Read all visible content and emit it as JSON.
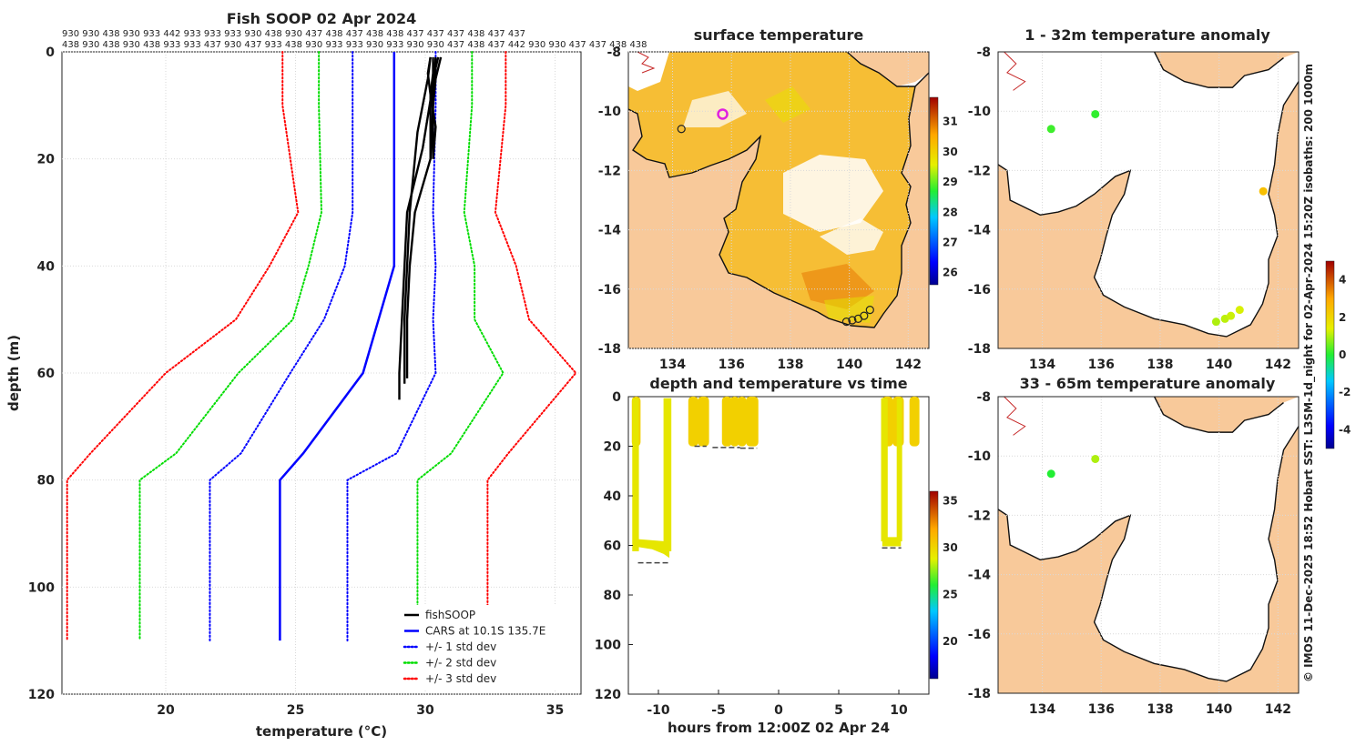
{
  "credit": "© IMOS 11-Dec-2025 18:52 Hobart SST: L3SM-1d_night for 02-Apr-2024 15:20Z isobaths: 200  1000m",
  "chart_data": [
    {
      "type": "line",
      "title": "Fish SOOP 02 Apr 2024",
      "xlabel": "temperature (°C)",
      "ylabel": "depth (m)",
      "xlim": [
        16,
        36
      ],
      "ylim": [
        0,
        120
      ],
      "xticks": [
        20,
        25,
        30,
        35
      ],
      "yticks": [
        0,
        20,
        40,
        60,
        80,
        100,
        120
      ],
      "top_labels_row1": "930 930 438 930 933 442 933 933 933 930 438 930 437 438 437 438 438 437 437 437 438 437 437",
      "top_labels_row2": "438 930 438 930 438 933 933 437 930 437 933 438 930 933 933 930 933 930 930 437 438 437 442 930 930 437 437 438 438",
      "legend": [
        "fishSOOP",
        "CARS at 10.1S 135.7E",
        "+/- 1 std dev",
        "+/- 2 std dev",
        "+/- 3 std dev"
      ],
      "depths": [
        0,
        10,
        30,
        40,
        50,
        60,
        75,
        80,
        110
      ],
      "series": [
        {
          "name": "CARS at 10.1S 135.7E",
          "color": "#0000ff",
          "style": "solid",
          "values": [
            28.8,
            28.8,
            28.8,
            28.8,
            28.2,
            27.6,
            25.3,
            24.4,
            24.4
          ]
        },
        {
          "name": "+1 std dev",
          "color": "#0000ff",
          "style": "dotted",
          "values": [
            30.4,
            30.4,
            30.3,
            30.4,
            30.3,
            30.4,
            28.9,
            27.0,
            27.0
          ]
        },
        {
          "name": "-1 std dev",
          "color": "#0000ff",
          "style": "dotted",
          "values": [
            27.2,
            27.2,
            27.2,
            26.9,
            26.1,
            24.8,
            22.9,
            21.7,
            21.7
          ]
        },
        {
          "name": "+2 std dev",
          "color": "#00dd00",
          "style": "dotted",
          "values": [
            31.8,
            31.8,
            31.5,
            31.9,
            31.9,
            33.0,
            31.0,
            29.7,
            29.7
          ]
        },
        {
          "name": "-2 std dev",
          "color": "#00dd00",
          "style": "dotted",
          "values": [
            25.9,
            25.9,
            26.0,
            25.5,
            24.9,
            22.8,
            20.4,
            19.0,
            19.0
          ]
        },
        {
          "name": "+3 std dev",
          "color": "#ff0000",
          "style": "dotted",
          "values": [
            33.1,
            33.1,
            32.7,
            33.5,
            34.0,
            35.8,
            33.2,
            32.4,
            32.4
          ]
        },
        {
          "name": "-3 std dev",
          "color": "#ff0000",
          "style": "dotted",
          "values": [
            24.5,
            24.5,
            25.1,
            24.0,
            22.7,
            20.0,
            17.1,
            16.2,
            16.2
          ]
        }
      ],
      "fishsoop_profiles": [
        {
          "d": [
            1,
            5,
            10,
            15,
            20,
            25,
            30,
            40,
            50,
            60,
            62
          ],
          "t": [
            30.2,
            30.1,
            29.9,
            29.7,
            29.6,
            29.5,
            29.4,
            29.3,
            29.2,
            29.2,
            29.2
          ]
        },
        {
          "d": [
            1,
            6,
            12,
            18,
            22,
            30,
            40,
            50,
            60,
            65
          ],
          "t": [
            30.4,
            30.3,
            30.1,
            29.9,
            29.7,
            29.3,
            29.2,
            29.1,
            29.0,
            29.0
          ]
        },
        {
          "d": [
            1,
            5,
            10,
            20,
            25,
            30,
            40,
            50,
            60,
            61
          ],
          "t": [
            30.6,
            30.4,
            30.3,
            30.2,
            29.9,
            29.6,
            29.4,
            29.3,
            29.3,
            29.3
          ]
        },
        {
          "d": [
            1,
            4,
            8,
            14,
            20
          ],
          "t": [
            30.2,
            30.1,
            30.2,
            30.2,
            30.2
          ]
        },
        {
          "d": [
            1,
            4,
            8,
            14,
            20
          ],
          "t": [
            30.3,
            30.3,
            30.2,
            30.4,
            30.3
          ]
        },
        {
          "d": [
            1,
            3,
            7,
            12,
            18,
            20
          ],
          "t": [
            30.5,
            30.4,
            30.3,
            30.3,
            30.3,
            30.3
          ]
        }
      ]
    },
    {
      "type": "heatmap",
      "title": "surface temperature",
      "xticks": [
        134,
        136,
        138,
        140,
        142
      ],
      "yticks": [
        -8,
        -10,
        -12,
        -14,
        -16,
        -18
      ],
      "xlim": [
        132.5,
        142.7
      ],
      "ylim": [
        -18,
        -8
      ],
      "colorbar_ticks": [
        26,
        27,
        28,
        29,
        30,
        31
      ],
      "colorbar_range": [
        25.6,
        31.8
      ],
      "markers": [
        {
          "lon": 135.7,
          "lat": -10.1
        }
      ]
    },
    {
      "type": "scatter",
      "title": "depth and temperature vs time",
      "xlabel": "hours from 12:00Z 02 Apr 24",
      "xticks": [
        -10,
        -5,
        0,
        5,
        10
      ],
      "yticks": [
        0,
        20,
        40,
        60,
        80,
        100,
        120
      ],
      "xlim": [
        -12.5,
        12.5
      ],
      "ylim": [
        0,
        120
      ],
      "colorbar_ticks": [
        20,
        25,
        30,
        35
      ],
      "colorbar_range": [
        16,
        36
      ]
    },
    {
      "type": "scatter",
      "title": "1 - 32m temperature anomaly",
      "xticks": [
        134,
        136,
        138,
        140,
        142
      ],
      "yticks": [
        -8,
        -10,
        -12,
        -14,
        -16,
        -18
      ],
      "colorbar_ticks": [
        -4,
        -2,
        0,
        2,
        4
      ],
      "colorbar_range": [
        -5,
        5
      ],
      "points": [
        {
          "lon": 134.3,
          "lat": -10.6,
          "anomaly": 0.2
        },
        {
          "lon": 135.8,
          "lat": -10.1,
          "anomaly": 0.1
        },
        {
          "lon": 141.5,
          "lat": -12.7,
          "anomaly": 2.5
        },
        {
          "lon": 139.9,
          "lat": -17.1,
          "anomaly": 1.0
        },
        {
          "lon": 140.2,
          "lat": -17.0,
          "anomaly": 1.1
        },
        {
          "lon": 140.4,
          "lat": -16.9,
          "anomaly": 1.2
        },
        {
          "lon": 140.7,
          "lat": -16.7,
          "anomaly": 1.3
        }
      ]
    },
    {
      "type": "scatter",
      "title": "33 - 65m temperature anomaly",
      "xticks": [
        134,
        136,
        138,
        140,
        142
      ],
      "yticks": [
        -8,
        -10,
        -12,
        -14,
        -16,
        -18
      ],
      "points": [
        {
          "lon": 134.3,
          "lat": -10.6,
          "anomaly": 0.0
        },
        {
          "lon": 135.8,
          "lat": -10.1,
          "anomaly": 1.0
        }
      ]
    }
  ]
}
